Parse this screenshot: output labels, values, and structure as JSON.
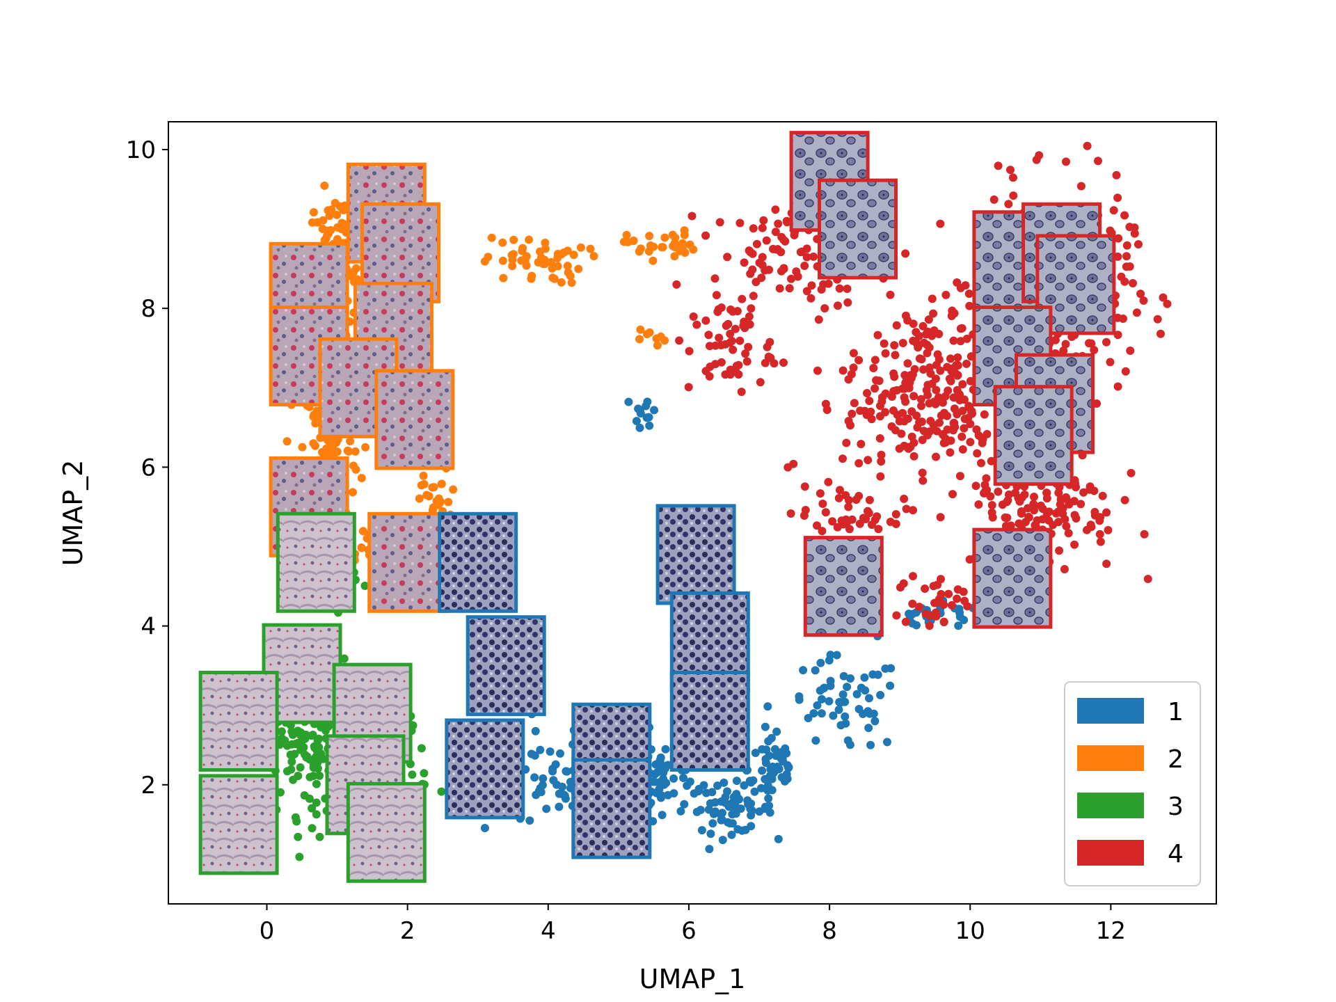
{
  "chart_data": {
    "type": "scatter",
    "title": "",
    "xlabel": "UMAP_1",
    "ylabel": "UMAP_2",
    "xlim": [
      -1.4,
      13.5
    ],
    "ylim": [
      0.5,
      10.35
    ],
    "xticks": [
      0,
      2,
      4,
      6,
      8,
      10,
      12
    ],
    "yticks": [
      2,
      4,
      6,
      8,
      10
    ],
    "grid": false,
    "legend_position": "lower-right",
    "colors": {
      "1": "#1f77b4",
      "2": "#ff7f0e",
      "3": "#2ca02c",
      "4": "#d62728"
    },
    "series": [
      {
        "name": "1",
        "color": "#1f77b4",
        "clusters": [
          {
            "center": [
              5.0,
              2.1
            ],
            "spread": [
              0.9,
              0.45
            ],
            "count": 260
          },
          {
            "center": [
              6.6,
              1.7
            ],
            "spread": [
              0.5,
              0.25
            ],
            "count": 60
          },
          {
            "center": [
              7.2,
              2.2
            ],
            "spread": [
              0.3,
              0.4
            ],
            "count": 50
          },
          {
            "center": [
              8.2,
              3.0
            ],
            "spread": [
              0.7,
              0.5
            ],
            "count": 55
          },
          {
            "center": [
              9.5,
              4.1
            ],
            "spread": [
              0.6,
              0.15
            ],
            "count": 30
          },
          {
            "center": [
              5.4,
              6.7
            ],
            "spread": [
              0.15,
              0.2
            ],
            "count": 12
          },
          {
            "center": [
              3.5,
              2.2
            ],
            "spread": [
              0.4,
              0.6
            ],
            "count": 35
          }
        ]
      },
      {
        "name": "2",
        "color": "#ff7f0e",
        "clusters": [
          {
            "center": [
              1.0,
              8.6
            ],
            "spread": [
              0.35,
              0.7
            ],
            "count": 110
          },
          {
            "center": [
              0.9,
              6.2
            ],
            "spread": [
              0.35,
              0.9
            ],
            "count": 110
          },
          {
            "center": [
              1.5,
              5.0
            ],
            "spread": [
              0.4,
              0.25
            ],
            "count": 40
          },
          {
            "center": [
              3.8,
              8.6
            ],
            "spread": [
              0.6,
              0.25
            ],
            "count": 50
          },
          {
            "center": [
              5.6,
              8.8
            ],
            "spread": [
              0.4,
              0.15
            ],
            "count": 30
          },
          {
            "center": [
              2.4,
              5.6
            ],
            "spread": [
              0.3,
              0.3
            ],
            "count": 25
          },
          {
            "center": [
              5.5,
              7.6
            ],
            "spread": [
              0.15,
              0.15
            ],
            "count": 8
          }
        ]
      },
      {
        "name": "3",
        "color": "#2ca02c",
        "clusters": [
          {
            "center": [
              0.6,
              2.6
            ],
            "spread": [
              0.5,
              0.8
            ],
            "count": 160
          },
          {
            "center": [
              1.7,
              2.3
            ],
            "spread": [
              0.5,
              0.6
            ],
            "count": 90
          },
          {
            "center": [
              0.9,
              4.6
            ],
            "spread": [
              0.3,
              0.5
            ],
            "count": 40
          }
        ]
      },
      {
        "name": "4",
        "color": "#d62728",
        "clusters": [
          {
            "center": [
              11.2,
              8.3
            ],
            "spread": [
              0.9,
              1.0
            ],
            "count": 360
          },
          {
            "center": [
              9.4,
              6.9
            ],
            "spread": [
              1.0,
              1.0
            ],
            "count": 260
          },
          {
            "center": [
              11.0,
              5.5
            ],
            "spread": [
              0.9,
              0.7
            ],
            "count": 150
          },
          {
            "center": [
              7.5,
              8.7
            ],
            "spread": [
              1.0,
              0.5
            ],
            "count": 100
          },
          {
            "center": [
              6.6,
              7.5
            ],
            "spread": [
              0.5,
              0.5
            ],
            "count": 55
          },
          {
            "center": [
              8.2,
              5.4
            ],
            "spread": [
              0.6,
              0.3
            ],
            "count": 40
          },
          {
            "center": [
              9.5,
              4.3
            ],
            "spread": [
              0.5,
              0.3
            ],
            "count": 30
          }
        ]
      }
    ],
    "image_patches": [
      {
        "cluster": "2",
        "x": 1.7,
        "y": 9.2
      },
      {
        "cluster": "2",
        "x": 1.9,
        "y": 8.7
      },
      {
        "cluster": "2",
        "x": 0.6,
        "y": 8.2
      },
      {
        "cluster": "2",
        "x": 1.8,
        "y": 7.7
      },
      {
        "cluster": "2",
        "x": 0.6,
        "y": 7.4
      },
      {
        "cluster": "2",
        "x": 1.3,
        "y": 7.0
      },
      {
        "cluster": "2",
        "x": 2.1,
        "y": 6.6
      },
      {
        "cluster": "2",
        "x": 0.6,
        "y": 5.5
      },
      {
        "cluster": "2",
        "x": 2.0,
        "y": 4.8
      },
      {
        "cluster": "3",
        "x": 0.7,
        "y": 4.8
      },
      {
        "cluster": "3",
        "x": 0.5,
        "y": 3.4
      },
      {
        "cluster": "3",
        "x": -0.4,
        "y": 2.8
      },
      {
        "cluster": "3",
        "x": 1.5,
        "y": 2.9
      },
      {
        "cluster": "3",
        "x": 1.4,
        "y": 2.0
      },
      {
        "cluster": "3",
        "x": -0.4,
        "y": 1.5
      },
      {
        "cluster": "3",
        "x": 1.7,
        "y": 1.4
      },
      {
        "cluster": "1",
        "x": 3.0,
        "y": 4.8
      },
      {
        "cluster": "1",
        "x": 3.4,
        "y": 3.5
      },
      {
        "cluster": "1",
        "x": 3.1,
        "y": 2.2
      },
      {
        "cluster": "1",
        "x": 4.9,
        "y": 2.4
      },
      {
        "cluster": "1",
        "x": 4.9,
        "y": 1.7
      },
      {
        "cluster": "1",
        "x": 6.1,
        "y": 4.9
      },
      {
        "cluster": "1",
        "x": 6.3,
        "y": 3.8
      },
      {
        "cluster": "1",
        "x": 6.3,
        "y": 2.8
      },
      {
        "cluster": "4",
        "x": 8.0,
        "y": 9.6
      },
      {
        "cluster": "4",
        "x": 8.4,
        "y": 9.0
      },
      {
        "cluster": "4",
        "x": 10.6,
        "y": 8.6
      },
      {
        "cluster": "4",
        "x": 11.3,
        "y": 8.7
      },
      {
        "cluster": "4",
        "x": 11.5,
        "y": 8.3
      },
      {
        "cluster": "4",
        "x": 10.6,
        "y": 7.4
      },
      {
        "cluster": "4",
        "x": 11.2,
        "y": 6.8
      },
      {
        "cluster": "4",
        "x": 10.9,
        "y": 6.4
      },
      {
        "cluster": "4",
        "x": 8.2,
        "y": 4.5
      },
      {
        "cluster": "4",
        "x": 10.6,
        "y": 4.6
      }
    ],
    "legend": [
      "1",
      "2",
      "3",
      "4"
    ]
  }
}
